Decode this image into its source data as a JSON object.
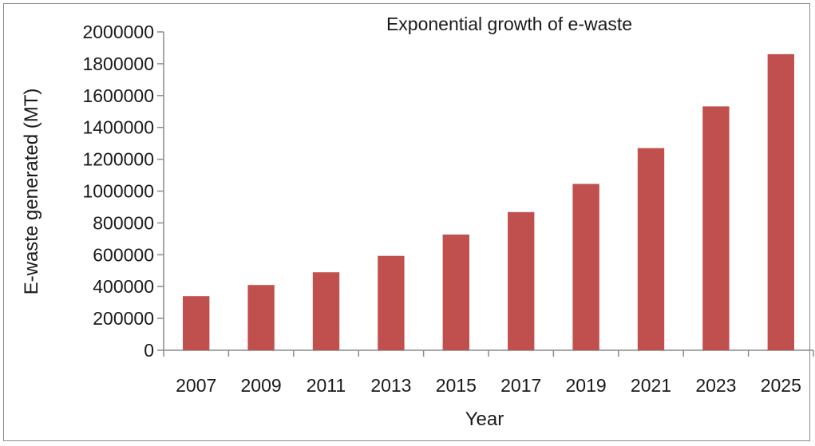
{
  "chart_data": {
    "type": "bar",
    "title": "Exponential growth of e-waste",
    "xlabel": "Year",
    "ylabel": "E-waste generated (MT)",
    "categories": [
      "2007",
      "2009",
      "2011",
      "2013",
      "2015",
      "2017",
      "2019",
      "2021",
      "2023",
      "2025"
    ],
    "values": [
      340000,
      410000,
      490000,
      593000,
      727000,
      868000,
      1045000,
      1270000,
      1532000,
      1860000
    ],
    "ylim": [
      0,
      2000000
    ],
    "yticks": [
      "0",
      "200000",
      "400000",
      "600000",
      "800000",
      "1000000",
      "1200000",
      "1400000",
      "1600000",
      "1800000",
      "2000000"
    ],
    "bar_color": "#c0504d",
    "grid": false,
    "legend": "none"
  }
}
